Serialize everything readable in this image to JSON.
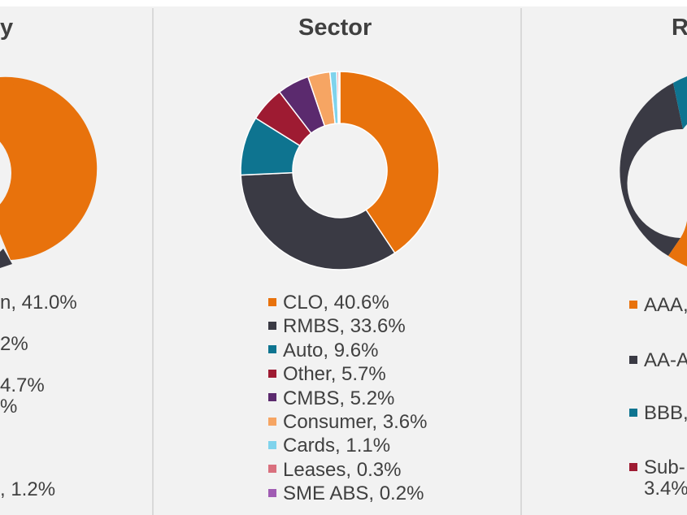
{
  "colors": {
    "orange": "#e8720c",
    "dark": "#3a3a44",
    "teal": "#0e7490",
    "crimson": "#9e1b32",
    "purple": "#5b2a6e",
    "peach": "#f6a563",
    "sky": "#7fd3ec",
    "pink": "#d9707e",
    "violet": "#a05cb3"
  },
  "left_panel": {
    "title_fragment": "y",
    "legend_fragments": [
      "n, 41.0%",
      "2%",
      "4.7%",
      "%",
      ", 1.2%"
    ]
  },
  "right_panel": {
    "title_fragment": "R",
    "legend": [
      {
        "label": "AAA,",
        "color": "#e8720c"
      },
      {
        "label": "AA-A",
        "color": "#3a3a44"
      },
      {
        "label": "BBB,",
        "color": "#0e7490"
      },
      {
        "label": "Sub-",
        "label2": "3.4%",
        "color": "#9e1b32"
      }
    ]
  },
  "chart_data": [
    {
      "type": "pie",
      "title": "Sector",
      "donut": true,
      "series": [
        {
          "name": "CLO",
          "value": 40.6,
          "label": "CLO, 40.6%",
          "color": "#e8720c"
        },
        {
          "name": "RMBS",
          "value": 33.6,
          "label": "RMBS, 33.6%",
          "color": "#3a3a44"
        },
        {
          "name": "Auto",
          "value": 9.6,
          "label": "Auto, 9.6%",
          "color": "#0e7490"
        },
        {
          "name": "Other",
          "value": 5.7,
          "label": "Other, 5.7%",
          "color": "#9e1b32"
        },
        {
          "name": "CMBS",
          "value": 5.2,
          "label": "CMBS, 5.2%",
          "color": "#5b2a6e"
        },
        {
          "name": "Consumer",
          "value": 3.6,
          "label": "Consumer, 3.6%",
          "color": "#f6a563"
        },
        {
          "name": "Cards",
          "value": 1.1,
          "label": "Cards, 1.1%",
          "color": "#7fd3ec"
        },
        {
          "name": "Leases",
          "value": 0.3,
          "label": "Leases, 0.3%",
          "color": "#d9707e"
        },
        {
          "name": "SME ABS",
          "value": 0.2,
          "label": "SME ABS, 0.2%",
          "color": "#a05cb3"
        }
      ],
      "legend": "below"
    }
  ]
}
